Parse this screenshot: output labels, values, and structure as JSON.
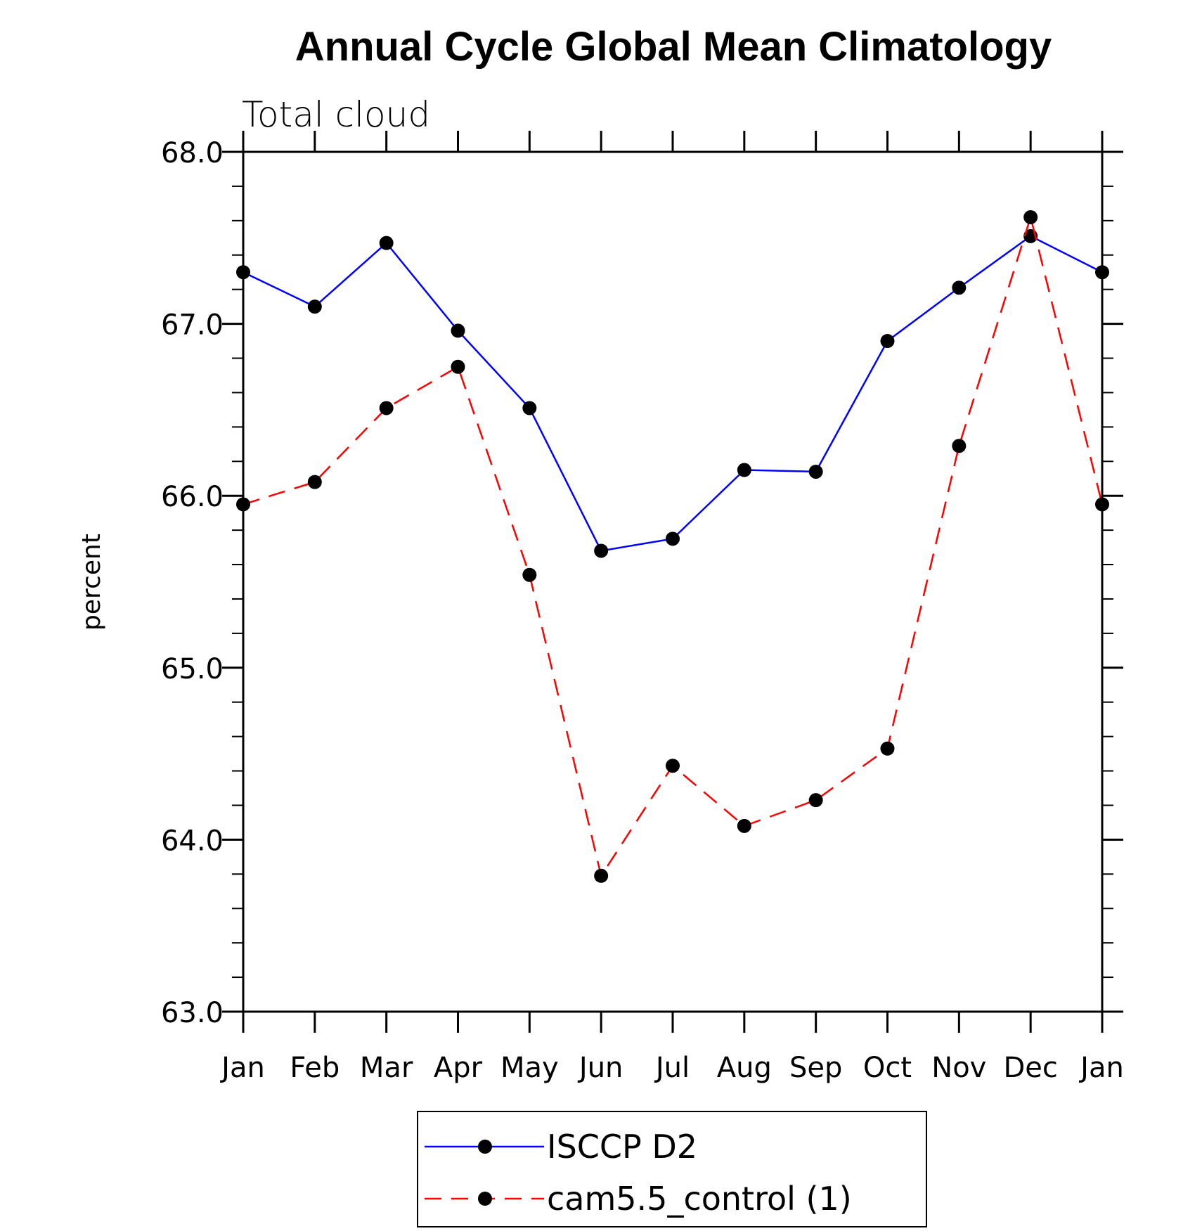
{
  "chart_data": {
    "type": "line",
    "title": "Annual Cycle Global Mean Climatology",
    "subtitle": "Total cloud",
    "xlabel": "",
    "ylabel": "percent",
    "categories": [
      "Jan",
      "Feb",
      "Mar",
      "Apr",
      "May",
      "Jun",
      "Jul",
      "Aug",
      "Sep",
      "Oct",
      "Nov",
      "Dec",
      "Jan"
    ],
    "ylim": [
      63.0,
      68.0
    ],
    "yticks": [
      "63.0",
      "64.0",
      "65.0",
      "66.0",
      "67.0",
      "68.0"
    ],
    "grid": false,
    "legend_position": "bottom-center",
    "series": [
      {
        "name": "ISCCP D2",
        "color": "#0000ff",
        "line_style": "solid",
        "values": [
          67.3,
          67.1,
          67.47,
          66.96,
          66.51,
          65.68,
          65.75,
          66.15,
          66.14,
          66.9,
          67.21,
          67.51,
          67.3
        ]
      },
      {
        "name": "cam5.5_control (1)",
        "color": "#ff0000",
        "line_style": "dashed",
        "values": [
          65.95,
          66.08,
          66.51,
          66.75,
          65.54,
          63.79,
          64.43,
          64.08,
          64.23,
          64.53,
          66.29,
          67.62,
          65.95
        ]
      }
    ]
  }
}
